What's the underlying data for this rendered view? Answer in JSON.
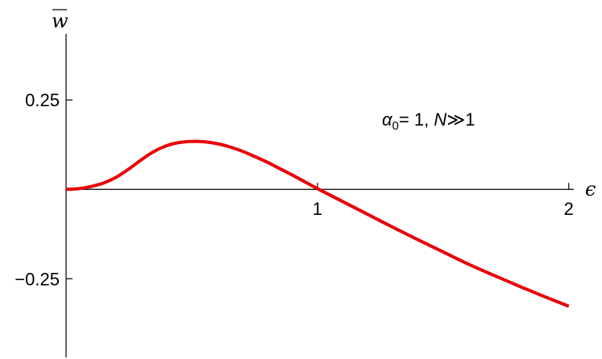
{
  "chart_data": {
    "type": "line",
    "title": "",
    "xlabel": "ϵ",
    "ylabel": "w",
    "ylabel_overline": true,
    "xlim": [
      0,
      2.02
    ],
    "ylim": [
      -0.47,
      0.48
    ],
    "x_ticks": [
      {
        "value": 1,
        "label": "1"
      },
      {
        "value": 2,
        "label": "2"
      }
    ],
    "y_ticks": [
      {
        "value": 0.25,
        "label": "0.25"
      },
      {
        "value": -0.25,
        "label": "−0.25"
      }
    ],
    "grid": false,
    "annotation": {
      "alpha_symbol": "α",
      "alpha_subscript": "0",
      "alpha_value": "= 1, ",
      "n_symbol": "N",
      "n_relation": "≫1"
    },
    "series": [
      {
        "color": "#e8000b",
        "x": [
          0,
          0.05,
          0.1,
          0.15,
          0.2,
          0.25,
          0.3,
          0.35,
          0.4,
          0.45,
          0.5,
          0.55,
          0.6,
          0.65,
          0.7,
          0.75,
          0.8,
          0.85,
          0.9,
          0.95,
          1.0,
          1.05,
          1.1,
          1.2,
          1.3,
          1.4,
          1.5,
          1.6,
          1.7,
          1.8,
          1.9,
          2.0
        ],
        "y": [
          0,
          0.002,
          0.008,
          0.018,
          0.034,
          0.057,
          0.083,
          0.106,
          0.122,
          0.131,
          0.134,
          0.133,
          0.128,
          0.119,
          0.107,
          0.092,
          0.076,
          0.058,
          0.04,
          0.021,
          0.002,
          -0.016,
          -0.034,
          -0.07,
          -0.106,
          -0.141,
          -0.175,
          -0.209,
          -0.24,
          -0.27,
          -0.299,
          -0.327
        ]
      }
    ]
  }
}
